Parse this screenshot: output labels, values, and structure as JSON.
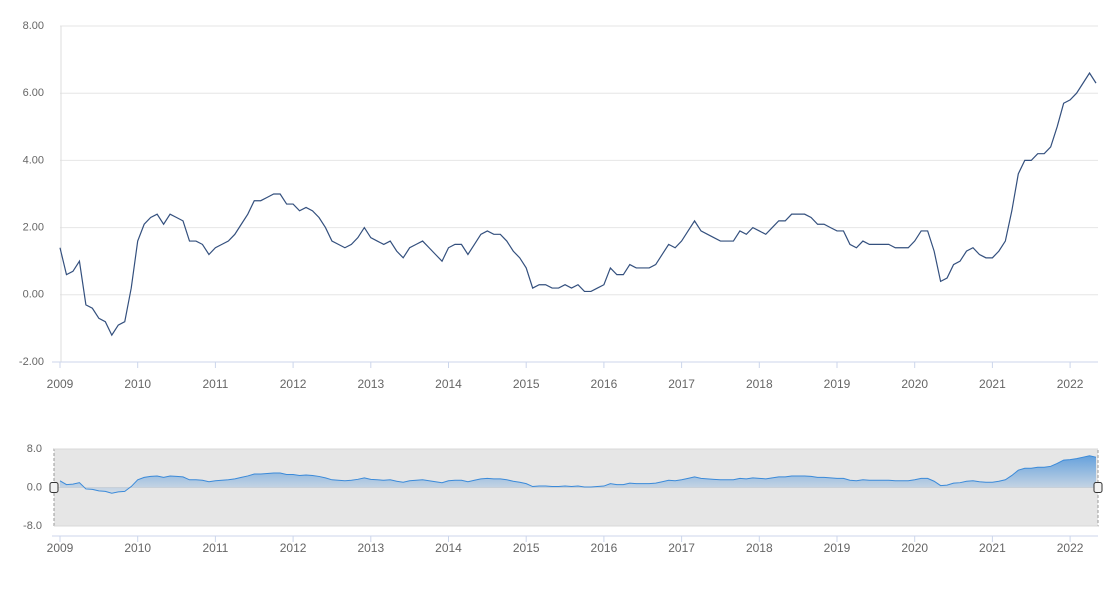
{
  "chart_data": {
    "type": "line",
    "x": [
      "2009-01",
      "2009-02",
      "2009-03",
      "2009-04",
      "2009-05",
      "2009-06",
      "2009-07",
      "2009-08",
      "2009-09",
      "2009-10",
      "2009-11",
      "2009-12",
      "2010-01",
      "2010-02",
      "2010-03",
      "2010-04",
      "2010-05",
      "2010-06",
      "2010-07",
      "2010-08",
      "2010-09",
      "2010-10",
      "2010-11",
      "2010-12",
      "2011-01",
      "2011-02",
      "2011-03",
      "2011-04",
      "2011-05",
      "2011-06",
      "2011-07",
      "2011-08",
      "2011-09",
      "2011-10",
      "2011-11",
      "2011-12",
      "2012-01",
      "2012-02",
      "2012-03",
      "2012-04",
      "2012-05",
      "2012-06",
      "2012-07",
      "2012-08",
      "2012-09",
      "2012-10",
      "2012-11",
      "2012-12",
      "2013-01",
      "2013-02",
      "2013-03",
      "2013-04",
      "2013-05",
      "2013-06",
      "2013-07",
      "2013-08",
      "2013-09",
      "2013-10",
      "2013-11",
      "2013-12",
      "2014-01",
      "2014-02",
      "2014-03",
      "2014-04",
      "2014-05",
      "2014-06",
      "2014-07",
      "2014-08",
      "2014-09",
      "2014-10",
      "2014-11",
      "2014-12",
      "2015-01",
      "2015-02",
      "2015-03",
      "2015-04",
      "2015-05",
      "2015-06",
      "2015-07",
      "2015-08",
      "2015-09",
      "2015-10",
      "2015-11",
      "2015-12",
      "2016-01",
      "2016-02",
      "2016-03",
      "2016-04",
      "2016-05",
      "2016-06",
      "2016-07",
      "2016-08",
      "2016-09",
      "2016-10",
      "2016-11",
      "2016-12",
      "2017-01",
      "2017-02",
      "2017-03",
      "2017-04",
      "2017-05",
      "2017-06",
      "2017-07",
      "2017-08",
      "2017-09",
      "2017-10",
      "2017-11",
      "2017-12",
      "2018-01",
      "2018-02",
      "2018-03",
      "2018-04",
      "2018-05",
      "2018-06",
      "2018-07",
      "2018-08",
      "2018-09",
      "2018-10",
      "2018-11",
      "2018-12",
      "2019-01",
      "2019-02",
      "2019-03",
      "2019-04",
      "2019-05",
      "2019-06",
      "2019-07",
      "2019-08",
      "2019-09",
      "2019-10",
      "2019-11",
      "2019-12",
      "2020-01",
      "2020-02",
      "2020-03",
      "2020-04",
      "2020-05",
      "2020-06",
      "2020-07",
      "2020-08",
      "2020-09",
      "2020-10",
      "2020-11",
      "2020-12",
      "2021-01",
      "2021-02",
      "2021-03",
      "2021-04",
      "2021-05",
      "2021-06",
      "2021-07",
      "2021-08",
      "2021-09",
      "2021-10",
      "2021-11",
      "2021-12",
      "2022-01",
      "2022-02",
      "2022-03",
      "2022-04",
      "2022-05"
    ],
    "series": [
      {
        "color": "#34507e",
        "values": [
          1.4,
          0.6,
          0.7,
          1.0,
          -0.3,
          -0.4,
          -0.7,
          -0.8,
          -1.2,
          -0.9,
          -0.8,
          0.2,
          1.6,
          2.1,
          2.3,
          2.4,
          2.1,
          2.4,
          2.3,
          2.2,
          1.6,
          1.6,
          1.5,
          1.2,
          1.4,
          1.5,
          1.6,
          1.8,
          2.1,
          2.4,
          2.8,
          2.8,
          2.9,
          3.0,
          3.0,
          2.7,
          2.7,
          2.5,
          2.6,
          2.5,
          2.3,
          2.0,
          1.6,
          1.5,
          1.4,
          1.5,
          1.7,
          2.0,
          1.7,
          1.6,
          1.5,
          1.6,
          1.3,
          1.1,
          1.4,
          1.5,
          1.6,
          1.4,
          1.2,
          1.0,
          1.4,
          1.5,
          1.5,
          1.2,
          1.5,
          1.8,
          1.9,
          1.8,
          1.8,
          1.6,
          1.3,
          1.1,
          0.8,
          0.2,
          0.3,
          0.3,
          0.2,
          0.2,
          0.3,
          0.2,
          0.3,
          0.1,
          0.1,
          0.2,
          0.3,
          0.8,
          0.6,
          0.6,
          0.9,
          0.8,
          0.8,
          0.8,
          0.9,
          1.2,
          1.5,
          1.4,
          1.6,
          1.9,
          2.2,
          1.9,
          1.8,
          1.7,
          1.6,
          1.6,
          1.6,
          1.9,
          1.8,
          2.0,
          1.9,
          1.8,
          2.0,
          2.2,
          2.2,
          2.4,
          2.4,
          2.4,
          2.3,
          2.1,
          2.1,
          2.0,
          1.9,
          1.9,
          1.5,
          1.4,
          1.6,
          1.5,
          1.5,
          1.5,
          1.5,
          1.4,
          1.4,
          1.4,
          1.6,
          1.9,
          1.9,
          1.3,
          0.4,
          0.5,
          0.9,
          1.0,
          1.3,
          1.4,
          1.2,
          1.1,
          1.1,
          1.3,
          1.6,
          2.5,
          3.6,
          4.0,
          4.0,
          4.2,
          4.2,
          4.4,
          5.0,
          5.7,
          5.8,
          6.0,
          6.3,
          6.6,
          6.3
        ]
      }
    ],
    "xlim": [
      "2009-01",
      "2022-05"
    ],
    "xticks": [
      2009,
      2010,
      2011,
      2012,
      2013,
      2014,
      2015,
      2016,
      2017,
      2018,
      2019,
      2020,
      2021,
      2022
    ],
    "ylim": [
      -2,
      8
    ],
    "yticks": [
      {
        "value": -2,
        "label": "-2.00"
      },
      {
        "value": 0,
        "label": "0.00"
      },
      {
        "value": 2,
        "label": "2.00"
      },
      {
        "value": 4,
        "label": "4.00"
      },
      {
        "value": 6,
        "label": "6.00"
      },
      {
        "value": 8,
        "label": "8.00"
      }
    ],
    "grid": true,
    "navigator": {
      "color": "#3b8ad9",
      "ylim": [
        -8,
        8
      ],
      "yticks": [
        {
          "value": -8,
          "label": "-8.0"
        },
        {
          "value": 0,
          "label": "0.0"
        },
        {
          "value": 8,
          "label": "8.0"
        }
      ]
    }
  }
}
